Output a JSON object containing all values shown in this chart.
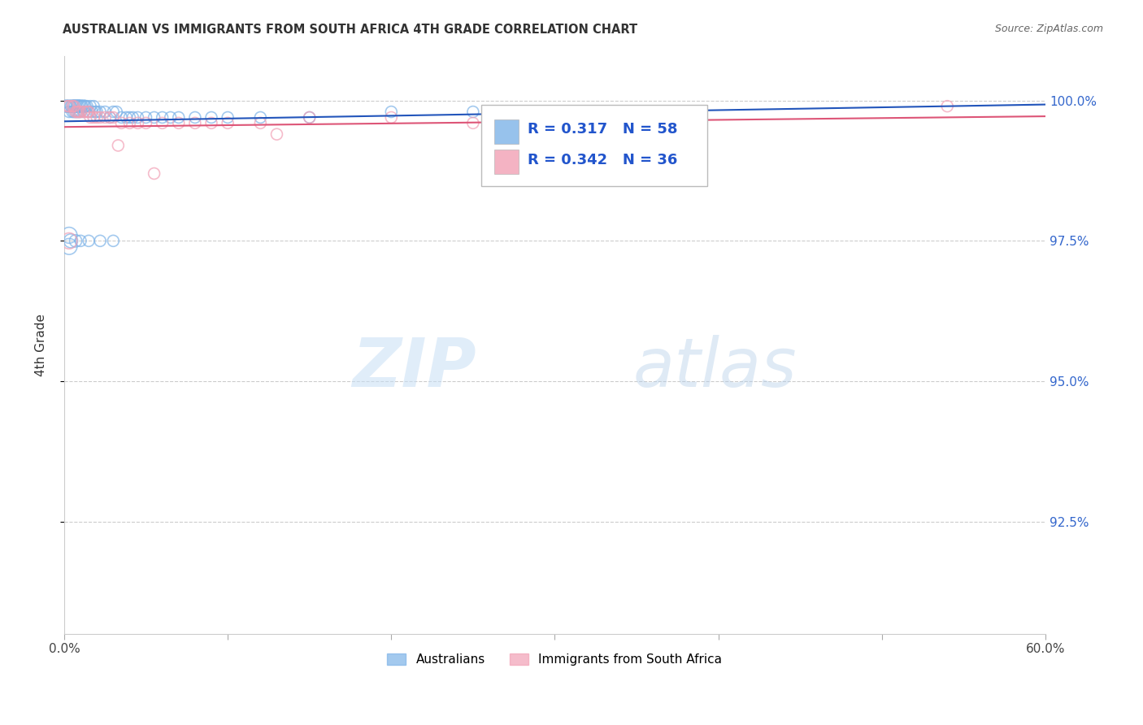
{
  "title": "AUSTRALIAN VS IMMIGRANTS FROM SOUTH AFRICA 4TH GRADE CORRELATION CHART",
  "source": "Source: ZipAtlas.com",
  "ylabel": "4th Grade",
  "ytick_labels": [
    "100.0%",
    "97.5%",
    "95.0%",
    "92.5%"
  ],
  "ytick_values": [
    1.0,
    0.975,
    0.95,
    0.925
  ],
  "xlim": [
    0.0,
    0.6
  ],
  "ylim": [
    0.905,
    1.008
  ],
  "blue_color": "#7db3e8",
  "pink_color": "#f2a0b5",
  "blue_line_color": "#2255bb",
  "pink_line_color": "#dd5577",
  "legend_R1": "0.317",
  "legend_N1": "58",
  "legend_R2": "0.342",
  "legend_N2": "36",
  "blue_points": [
    [
      0.001,
      0.999
    ],
    [
      0.002,
      0.999
    ],
    [
      0.003,
      0.999
    ],
    [
      0.003,
      0.998
    ],
    [
      0.004,
      0.999
    ],
    [
      0.005,
      0.999
    ],
    [
      0.005,
      0.998
    ],
    [
      0.006,
      0.999
    ],
    [
      0.006,
      0.998
    ],
    [
      0.007,
      0.999
    ],
    [
      0.007,
      0.998
    ],
    [
      0.008,
      0.999
    ],
    [
      0.008,
      0.998
    ],
    [
      0.009,
      0.999
    ],
    [
      0.009,
      0.998
    ],
    [
      0.01,
      0.999
    ],
    [
      0.01,
      0.998
    ],
    [
      0.011,
      0.999
    ],
    [
      0.012,
      0.999
    ],
    [
      0.012,
      0.998
    ],
    [
      0.013,
      0.999
    ],
    [
      0.014,
      0.999
    ],
    [
      0.015,
      0.998
    ],
    [
      0.016,
      0.999
    ],
    [
      0.017,
      0.998
    ],
    [
      0.018,
      0.999
    ],
    [
      0.019,
      0.998
    ],
    [
      0.02,
      0.998
    ],
    [
      0.022,
      0.998
    ],
    [
      0.025,
      0.998
    ],
    [
      0.028,
      0.997
    ],
    [
      0.03,
      0.998
    ],
    [
      0.032,
      0.998
    ],
    [
      0.035,
      0.997
    ],
    [
      0.038,
      0.997
    ],
    [
      0.04,
      0.997
    ],
    [
      0.042,
      0.997
    ],
    [
      0.045,
      0.997
    ],
    [
      0.05,
      0.997
    ],
    [
      0.055,
      0.997
    ],
    [
      0.06,
      0.997
    ],
    [
      0.065,
      0.997
    ],
    [
      0.07,
      0.997
    ],
    [
      0.08,
      0.997
    ],
    [
      0.09,
      0.997
    ],
    [
      0.1,
      0.997
    ],
    [
      0.12,
      0.997
    ],
    [
      0.15,
      0.997
    ],
    [
      0.2,
      0.998
    ],
    [
      0.25,
      0.998
    ],
    [
      0.003,
      0.976
    ],
    [
      0.003,
      0.974
    ],
    [
      0.004,
      0.975
    ],
    [
      0.007,
      0.975
    ],
    [
      0.01,
      0.975
    ],
    [
      0.015,
      0.975
    ],
    [
      0.022,
      0.975
    ],
    [
      0.03,
      0.975
    ]
  ],
  "blue_sizes": [
    120,
    100,
    120,
    100,
    100,
    120,
    100,
    120,
    100,
    120,
    100,
    120,
    100,
    120,
    100,
    120,
    100,
    100,
    120,
    100,
    100,
    100,
    100,
    100,
    100,
    100,
    100,
    100,
    100,
    100,
    100,
    100,
    100,
    100,
    100,
    100,
    100,
    100,
    100,
    100,
    100,
    100,
    100,
    100,
    100,
    100,
    100,
    100,
    100,
    100,
    200,
    200,
    150,
    120,
    100,
    100,
    100,
    100
  ],
  "pink_points": [
    [
      0.002,
      0.999
    ],
    [
      0.003,
      0.999
    ],
    [
      0.005,
      0.999
    ],
    [
      0.006,
      0.999
    ],
    [
      0.007,
      0.998
    ],
    [
      0.008,
      0.998
    ],
    [
      0.009,
      0.998
    ],
    [
      0.01,
      0.998
    ],
    [
      0.012,
      0.998
    ],
    [
      0.014,
      0.998
    ],
    [
      0.015,
      0.998
    ],
    [
      0.016,
      0.997
    ],
    [
      0.018,
      0.997
    ],
    [
      0.02,
      0.997
    ],
    [
      0.022,
      0.997
    ],
    [
      0.025,
      0.997
    ],
    [
      0.028,
      0.997
    ],
    [
      0.03,
      0.997
    ],
    [
      0.035,
      0.996
    ],
    [
      0.04,
      0.996
    ],
    [
      0.045,
      0.996
    ],
    [
      0.05,
      0.996
    ],
    [
      0.06,
      0.996
    ],
    [
      0.07,
      0.996
    ],
    [
      0.08,
      0.996
    ],
    [
      0.09,
      0.996
    ],
    [
      0.1,
      0.996
    ],
    [
      0.12,
      0.996
    ],
    [
      0.15,
      0.997
    ],
    [
      0.2,
      0.997
    ],
    [
      0.25,
      0.996
    ],
    [
      0.003,
      0.975
    ],
    [
      0.055,
      0.987
    ],
    [
      0.13,
      0.994
    ],
    [
      0.54,
      0.999
    ],
    [
      0.033,
      0.992
    ]
  ],
  "pink_sizes": [
    100,
    100,
    100,
    100,
    100,
    100,
    100,
    100,
    100,
    100,
    100,
    100,
    100,
    100,
    100,
    100,
    100,
    100,
    100,
    100,
    100,
    100,
    100,
    100,
    100,
    100,
    100,
    100,
    100,
    100,
    100,
    200,
    100,
    100,
    100,
    100
  ]
}
